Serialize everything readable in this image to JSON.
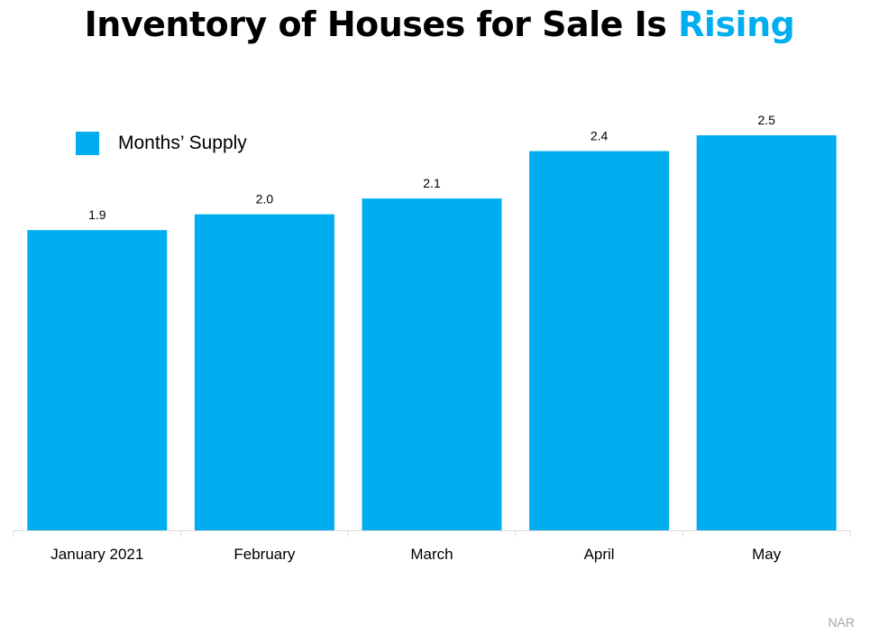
{
  "title": {
    "main": "Inventory of Houses for Sale Is ",
    "accent": "Rising"
  },
  "source": "NAR",
  "chart_data": {
    "type": "bar",
    "categories": [
      "January 2021",
      "February",
      "March",
      "April",
      "May"
    ],
    "series": [
      {
        "name": "Months’ Supply",
        "values": [
          1.9,
          2.0,
          2.1,
          2.4,
          2.5
        ],
        "color": "#00aeef"
      }
    ],
    "data_labels": [
      "1.9",
      "2.0",
      "2.1",
      "2.4",
      "2.5"
    ],
    "legend": "top-left",
    "grid": false,
    "ylim": [
      0,
      2.7
    ]
  }
}
